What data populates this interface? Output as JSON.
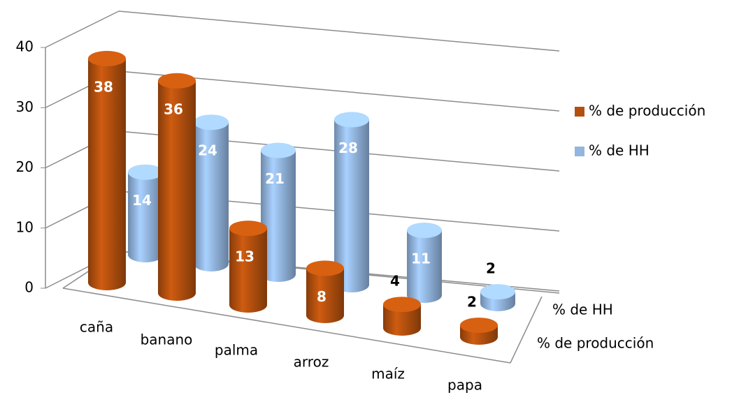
{
  "chart_data": {
    "type": "bar3d",
    "categories": [
      "caña",
      "banano",
      "palma",
      "arroz",
      "maíz",
      "papa"
    ],
    "series": [
      {
        "name": "% de producción",
        "color": "#b4500e",
        "values": [
          38,
          36,
          13,
          8,
          4,
          2
        ]
      },
      {
        "name": "% de HH",
        "color": "#93b6e1",
        "values": [
          14,
          24,
          21,
          28,
          11,
          2
        ]
      }
    ],
    "ylim": [
      0,
      40
    ],
    "yticks": [
      0,
      10,
      20,
      30,
      40
    ],
    "grid": true,
    "legend": "right"
  }
}
